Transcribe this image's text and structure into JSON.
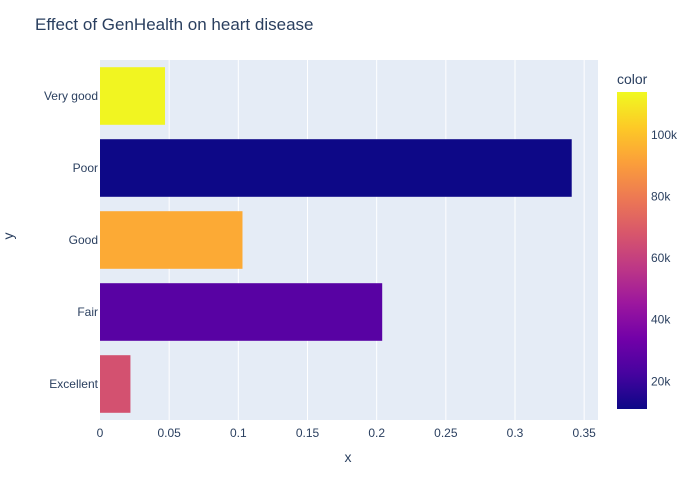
{
  "chart_data": {
    "type": "bar",
    "orientation": "horizontal",
    "title": "Effect of GenHealth on heart disease",
    "xlabel": "x",
    "ylabel": "y",
    "xlim": [
      0,
      0.36
    ],
    "x_ticks": [
      0,
      0.05,
      0.1,
      0.15,
      0.2,
      0.25,
      0.3,
      0.35
    ],
    "x_tick_labels": [
      "0",
      "0.05",
      "0.1",
      "0.15",
      "0.2",
      "0.25",
      "0.3",
      "0.35"
    ],
    "categories": [
      "Excellent",
      "Fair",
      "Good",
      "Poor",
      "Very good"
    ],
    "values": [
      0.022,
      0.204,
      0.103,
      0.341,
      0.047
    ],
    "color_values": [
      66000,
      27000,
      94000,
      11000,
      113000
    ],
    "colorbar": {
      "title": "color",
      "range": [
        11000,
        114000
      ],
      "ticks": [
        20000,
        40000,
        60000,
        80000,
        100000
      ],
      "tick_labels": [
        "20k",
        "40k",
        "60k",
        "80k",
        "100k"
      ],
      "colorscale": [
        "#0d0887",
        "#46039f",
        "#7201a8",
        "#9c179e",
        "#bd3786",
        "#d8576b",
        "#ed7953",
        "#fb9f3a",
        "#fdca26",
        "#f0f921"
      ]
    },
    "plot_bgcolor": "#e5ecf6",
    "grid": true
  }
}
